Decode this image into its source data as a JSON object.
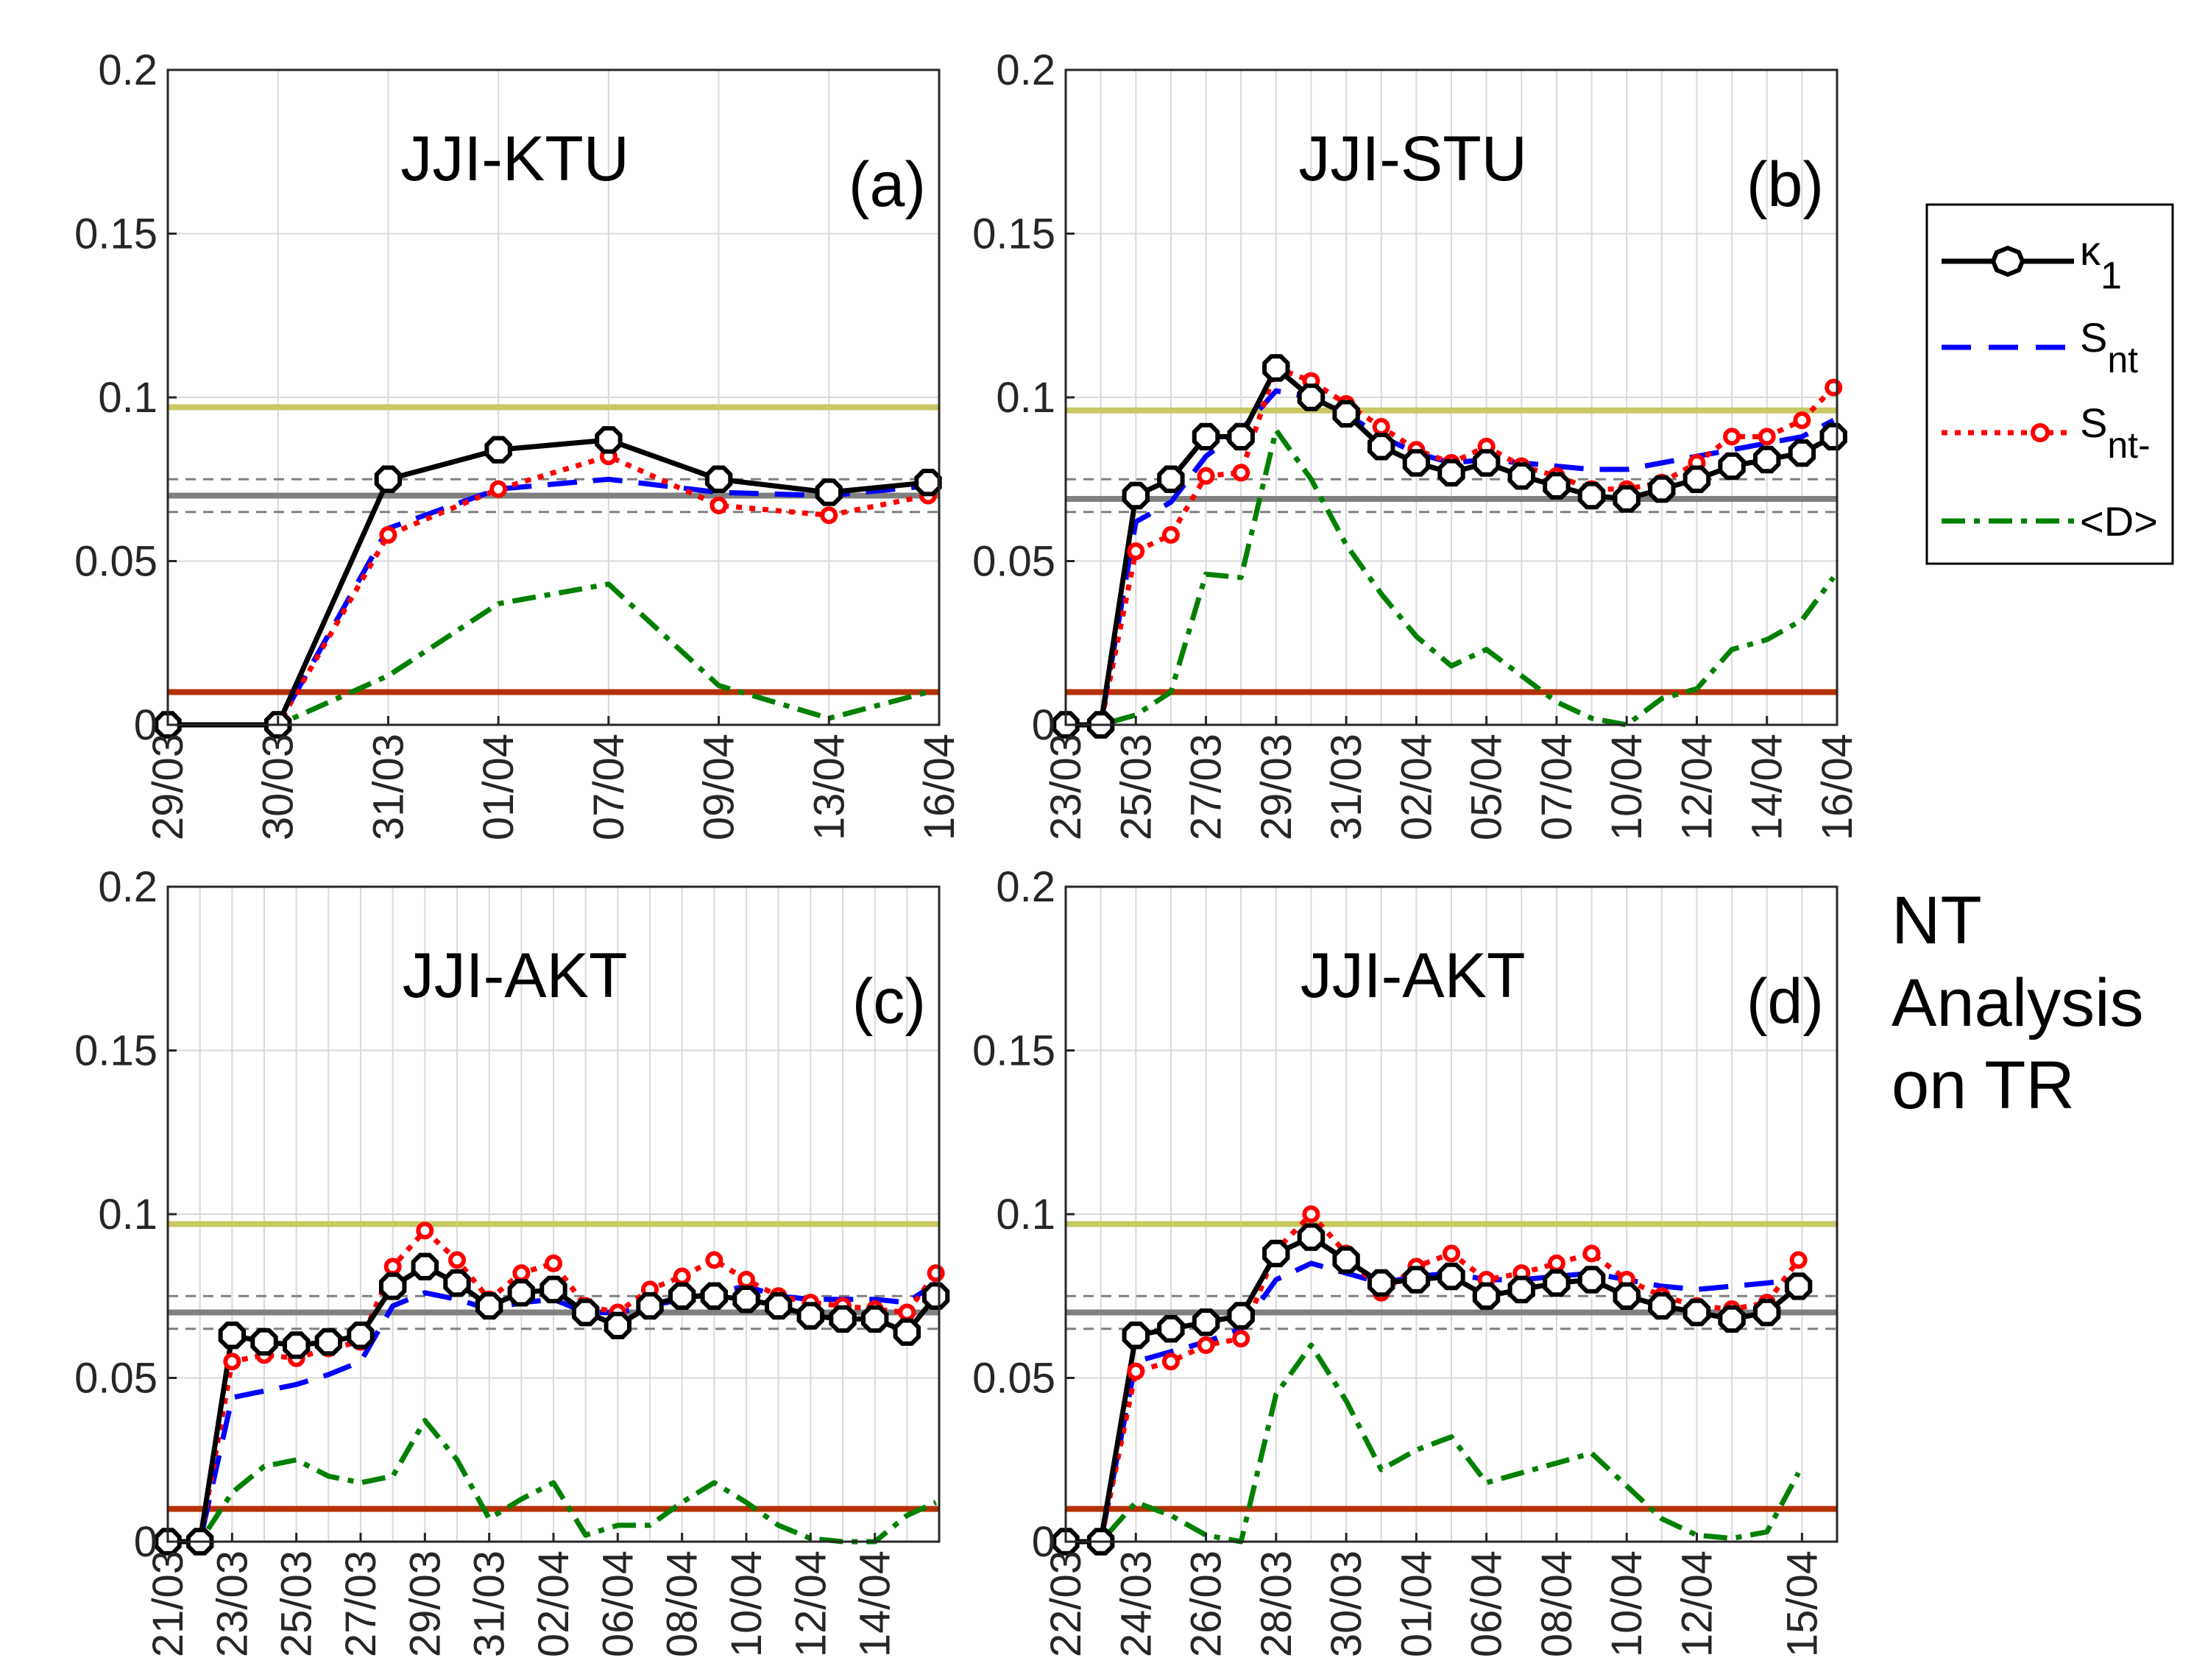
{
  "colors": {
    "k1": "#000000",
    "snt": "#0000ff",
    "sntm": "#ff0000",
    "d": "#008000",
    "yellow_line": "#c8c864",
    "brown_line": "#b43200",
    "gray_line": "#808080",
    "gray_dash": "#808080"
  },
  "legend": {
    "k1": {
      "main": "κ",
      "sub": "1"
    },
    "snt": {
      "main": "S",
      "sub": "nt"
    },
    "sntm": {
      "main": "S",
      "sub": "nt-"
    },
    "d": {
      "main": "<D>",
      "sub": ""
    }
  },
  "side_text": [
    "NT",
    "Analysis",
    "on TR"
  ],
  "chart_data": [
    {
      "type": "line",
      "title": "JJI-KTU",
      "panel_label": "(a)",
      "ylim": [
        0,
        0.2
      ],
      "yticks": [
        "0",
        "0.05",
        "0.1",
        "0.15",
        "0.2"
      ],
      "ref_lines": {
        "yellow": 0.097,
        "brown": 0.01,
        "gray": 0.07,
        "gray_dash_hi": 0.075,
        "gray_dash_lo": 0.065
      },
      "x": [
        0,
        1,
        2,
        3,
        4,
        5,
        6,
        7
      ],
      "xticks": [
        "29/03",
        "30/03",
        "31/03",
        "01/04",
        "07/04",
        "09/04",
        "13/04",
        "16/04"
      ],
      "grid_n": 7,
      "series": [
        {
          "name": "k1",
          "x": [
            0,
            1,
            2,
            3,
            4,
            5,
            6,
            6.9
          ],
          "values": [
            0,
            0,
            0.075,
            0.084,
            0.087,
            0.075,
            0.071,
            0.074
          ]
        },
        {
          "name": "snt",
          "x": [
            0,
            1,
            2,
            3,
            4,
            5,
            6,
            6.9
          ],
          "values": [
            0,
            0,
            0.06,
            0.072,
            0.075,
            0.071,
            0.07,
            0.073
          ]
        },
        {
          "name": "sntm",
          "x": [
            0,
            1,
            2,
            3,
            4,
            5,
            6,
            6.9
          ],
          "values": [
            0,
            0,
            0.058,
            0.072,
            0.082,
            0.067,
            0.064,
            0.07
          ]
        },
        {
          "name": "d",
          "x": [
            0,
            1,
            2,
            3,
            4,
            5,
            6,
            6.9
          ],
          "values": [
            0,
            0,
            0.015,
            0.037,
            0.043,
            0.012,
            0.002,
            0.01
          ]
        }
      ]
    },
    {
      "type": "line",
      "title": "JJI-STU",
      "panel_label": "(b)",
      "ylim": [
        0,
        0.2
      ],
      "yticks": [
        "0",
        "0.05",
        "0.1",
        "0.15",
        "0.2"
      ],
      "ref_lines": {
        "yellow": 0.096,
        "brown": 0.01,
        "gray": 0.069,
        "gray_dash_hi": 0.075,
        "gray_dash_lo": 0.065
      },
      "x": [
        0,
        2,
        4,
        6,
        8,
        10,
        12,
        14,
        16,
        18,
        20,
        22
      ],
      "xticks": [
        "23/03",
        "25/03",
        "27/03",
        "29/03",
        "31/03",
        "02/04",
        "05/04",
        "07/04",
        "10/04",
        "12/04",
        "14/04",
        "16/04"
      ],
      "grid_n": 22,
      "series": [
        {
          "name": "k1",
          "x": [
            0,
            1,
            2,
            3,
            4,
            5,
            6,
            7,
            8,
            9,
            10,
            11,
            12,
            13,
            14,
            15,
            16,
            17,
            18,
            19,
            20,
            21,
            21.9
          ],
          "values": [
            0,
            0,
            0.07,
            0.075,
            0.088,
            0.088,
            0.109,
            0.1,
            0.095,
            0.085,
            0.08,
            0.077,
            0.08,
            0.076,
            0.073,
            0.07,
            0.069,
            0.072,
            0.075,
            0.079,
            0.081,
            0.083,
            0.088
          ]
        },
        {
          "name": "snt",
          "x": [
            0,
            1,
            2,
            3,
            4,
            5,
            6,
            7,
            8,
            9,
            10,
            11,
            12,
            13,
            14,
            15,
            16,
            17,
            18,
            19,
            20,
            21,
            21.9
          ],
          "values": [
            0,
            0,
            0.062,
            0.068,
            0.082,
            0.09,
            0.102,
            0.1,
            0.095,
            0.088,
            0.083,
            0.08,
            0.081,
            0.08,
            0.079,
            0.078,
            0.078,
            0.08,
            0.082,
            0.084,
            0.086,
            0.088,
            0.093
          ]
        },
        {
          "name": "sntm",
          "x": [
            0,
            1,
            2,
            3,
            4,
            5,
            6,
            7,
            8,
            9,
            10,
            11,
            12,
            13,
            14,
            15,
            16,
            17,
            18,
            19,
            20,
            21,
            21.9
          ],
          "values": [
            0,
            0,
            0.053,
            0.058,
            0.076,
            0.077,
            0.109,
            0.105,
            0.098,
            0.091,
            0.084,
            0.08,
            0.085,
            0.079,
            0.076,
            0.072,
            0.072,
            0.074,
            0.08,
            0.088,
            0.088,
            0.093,
            0.103
          ]
        },
        {
          "name": "d",
          "x": [
            0,
            1,
            2,
            3,
            4,
            5,
            6,
            7,
            8,
            9,
            10,
            11,
            12,
            13,
            14,
            15,
            16,
            17,
            18,
            19,
            20,
            21,
            21.9
          ],
          "values": [
            0,
            0,
            0.003,
            0.01,
            0.046,
            0.045,
            0.09,
            0.075,
            0.055,
            0.04,
            0.027,
            0.018,
            0.023,
            0.015,
            0.007,
            0.002,
            0.0,
            0.008,
            0.011,
            0.023,
            0.026,
            0.032,
            0.045
          ]
        }
      ]
    },
    {
      "type": "line",
      "title": "JJI-AKT",
      "panel_label": "(c)",
      "ylim": [
        0,
        0.2
      ],
      "yticks": [
        "0",
        "0.05",
        "0.1",
        "0.15",
        "0.2"
      ],
      "ref_lines": {
        "yellow": 0.097,
        "brown": 0.01,
        "gray": 0.07,
        "gray_dash_hi": 0.075,
        "gray_dash_lo": 0.065
      },
      "x": [
        0,
        2,
        4,
        6,
        8,
        10,
        12,
        14,
        16,
        18,
        20,
        22,
        24
      ],
      "xticks": [
        "21/03",
        "23/03",
        "25/03",
        "27/03",
        "29/03",
        "31/03",
        "02/04",
        "06/04",
        "08/04",
        "10/04",
        "12/04",
        "14/04"
      ],
      "grid_n": 24,
      "series": [
        {
          "name": "k1",
          "x": [
            0,
            1,
            2,
            3,
            4,
            5,
            6,
            7,
            8,
            9,
            10,
            11,
            12,
            13,
            14,
            15,
            16,
            17,
            18,
            19,
            20,
            21,
            22,
            23,
            23.9
          ],
          "values": [
            0,
            0,
            0.063,
            0.061,
            0.06,
            0.061,
            0.063,
            0.078,
            0.084,
            0.079,
            0.072,
            0.076,
            0.077,
            0.07,
            0.066,
            0.072,
            0.075,
            0.075,
            0.074,
            0.072,
            0.069,
            0.068,
            0.068,
            0.064,
            0.075
          ]
        },
        {
          "name": "snt",
          "x": [
            0,
            1,
            2,
            3,
            4,
            5,
            6,
            7,
            8,
            9,
            10,
            11,
            12,
            13,
            14,
            15,
            16,
            17,
            18,
            19,
            20,
            21,
            22,
            23,
            23.9
          ],
          "values": [
            0,
            0,
            0.044,
            0.046,
            0.048,
            0.051,
            0.055,
            0.072,
            0.076,
            0.074,
            0.071,
            0.073,
            0.074,
            0.07,
            0.07,
            0.072,
            0.074,
            0.076,
            0.078,
            0.075,
            0.074,
            0.074,
            0.074,
            0.073,
            0.079
          ]
        },
        {
          "name": "sntm",
          "x": [
            0,
            1,
            2,
            3,
            4,
            5,
            6,
            7,
            8,
            9,
            10,
            11,
            12,
            13,
            14,
            15,
            16,
            17,
            18,
            19,
            20,
            21,
            22,
            23,
            23.9
          ],
          "values": [
            0,
            0,
            0.055,
            0.057,
            0.056,
            0.059,
            0.061,
            0.084,
            0.095,
            0.086,
            0.074,
            0.082,
            0.085,
            0.072,
            0.07,
            0.077,
            0.081,
            0.086,
            0.08,
            0.075,
            0.073,
            0.072,
            0.071,
            0.07,
            0.082
          ]
        },
        {
          "name": "d",
          "x": [
            0,
            1,
            2,
            3,
            4,
            5,
            6,
            7,
            8,
            9,
            10,
            11,
            12,
            13,
            14,
            15,
            16,
            17,
            18,
            19,
            20,
            21,
            22,
            23,
            23.9
          ],
          "values": [
            0,
            0,
            0.015,
            0.023,
            0.025,
            0.02,
            0.018,
            0.02,
            0.037,
            0.025,
            0.007,
            0.013,
            0.018,
            0.002,
            0.005,
            0.005,
            0.012,
            0.018,
            0.012,
            0.005,
            0.001,
            0.0,
            0.0,
            0.008,
            0.012
          ]
        }
      ]
    },
    {
      "type": "line",
      "title": "JJI-AKT",
      "panel_label": "(d)",
      "ylim": [
        0,
        0.2
      ],
      "yticks": [
        "0",
        "0.05",
        "0.1",
        "0.15",
        "0.2"
      ],
      "ref_lines": {
        "yellow": 0.097,
        "brown": 0.01,
        "gray": 0.07,
        "gray_dash_hi": 0.075,
        "gray_dash_lo": 0.065
      },
      "x": [
        0,
        2,
        4,
        6,
        8,
        10,
        12,
        14,
        16,
        18,
        20,
        22
      ],
      "xticks": [
        "22/03",
        "24/03",
        "26/03",
        "28/03",
        "30/03",
        "01/04",
        "06/04",
        "08/04",
        "10/04",
        "12/04",
        "15/04"
      ],
      "xtick_pos": [
        0,
        2,
        4,
        6,
        8,
        10,
        12,
        14,
        16,
        18,
        21
      ],
      "grid_n": 22,
      "series": [
        {
          "name": "k1",
          "x": [
            0,
            1,
            2,
            3,
            4,
            5,
            6,
            7,
            8,
            9,
            10,
            11,
            12,
            13,
            14,
            15,
            16,
            17,
            18,
            19,
            20,
            20.9
          ],
          "values": [
            0,
            0,
            0.063,
            0.065,
            0.067,
            0.069,
            0.088,
            0.093,
            0.086,
            0.079,
            0.08,
            0.081,
            0.075,
            0.077,
            0.079,
            0.08,
            0.075,
            0.072,
            0.07,
            0.068,
            0.07,
            0.078
          ]
        },
        {
          "name": "snt",
          "x": [
            0,
            1,
            2,
            3,
            4,
            5,
            6,
            7,
            8,
            9,
            10,
            11,
            12,
            13,
            14,
            15,
            16,
            17,
            18,
            19,
            20,
            20.9
          ],
          "values": [
            0,
            0,
            0.055,
            0.058,
            0.061,
            0.065,
            0.08,
            0.085,
            0.082,
            0.079,
            0.081,
            0.082,
            0.08,
            0.08,
            0.081,
            0.082,
            0.08,
            0.078,
            0.077,
            0.078,
            0.079,
            0.08
          ]
        },
        {
          "name": "sntm",
          "x": [
            0,
            1,
            2,
            3,
            4,
            5,
            6,
            7,
            8,
            9,
            10,
            11,
            12,
            13,
            14,
            15,
            16,
            17,
            18,
            19,
            20,
            20.9
          ],
          "values": [
            0,
            0,
            0.052,
            0.055,
            0.06,
            0.062,
            0.089,
            0.1,
            0.088,
            0.076,
            0.084,
            0.088,
            0.08,
            0.082,
            0.085,
            0.088,
            0.08,
            0.075,
            0.072,
            0.071,
            0.073,
            0.086
          ]
        },
        {
          "name": "d",
          "x": [
            0,
            1,
            2,
            3,
            4,
            5,
            6,
            7,
            8,
            9,
            10,
            11,
            12,
            13,
            14,
            15,
            16,
            17,
            18,
            19,
            20,
            20.9
          ],
          "values": [
            0,
            0,
            0.012,
            0.008,
            0.002,
            0.0,
            0.045,
            0.06,
            0.043,
            0.022,
            0.028,
            0.032,
            0.018,
            0.021,
            0.024,
            0.027,
            0.017,
            0.007,
            0.002,
            0.001,
            0.003,
            0.021
          ]
        }
      ]
    }
  ]
}
